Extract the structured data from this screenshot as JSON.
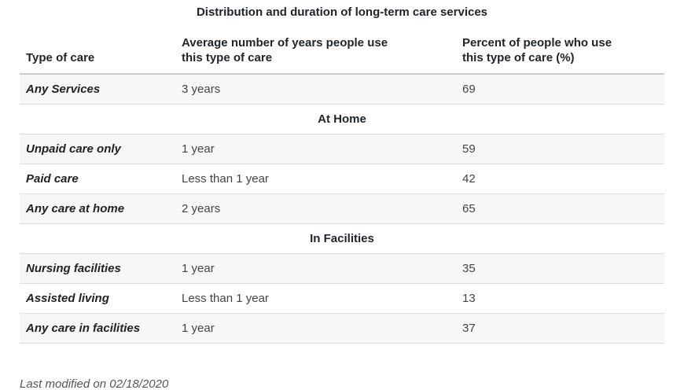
{
  "page": {
    "title": "Distribution and duration of long-term care services",
    "last_modified": "Last modified on 02/18/2020"
  },
  "table": {
    "columns": [
      {
        "lines": [
          "Type of care"
        ]
      },
      {
        "lines": [
          "Average number of years people use",
          "this type of care"
        ]
      },
      {
        "lines": [
          "Percent of people who use",
          "this type of care (%)"
        ]
      }
    ],
    "rows": [
      {
        "kind": "data",
        "label": "Any Services",
        "years": "3 years",
        "percent": "69"
      },
      {
        "kind": "section",
        "label": "At Home"
      },
      {
        "kind": "data",
        "label": "Unpaid care only",
        "years": "1 year",
        "percent": "59"
      },
      {
        "kind": "data",
        "label": "Paid care",
        "years": "Less than 1 year",
        "percent": "42"
      },
      {
        "kind": "data",
        "label": "Any care at home",
        "years": "2 years",
        "percent": "65"
      },
      {
        "kind": "section",
        "label": "In Facilities"
      },
      {
        "kind": "data",
        "label": "Nursing facilities",
        "years": "1 year",
        "percent": "35"
      },
      {
        "kind": "data",
        "label": "Assisted living",
        "years": "Less than 1 year",
        "percent": "13"
      },
      {
        "kind": "data",
        "label": "Any care in facilities",
        "years": "1 year",
        "percent": "37"
      }
    ]
  },
  "colors": {
    "stripe": "#f7f7f7",
    "row_border": "#dddddd",
    "header_border": "#cccccc",
    "heading_text": "#212529",
    "body_text": "#444444",
    "footer_text": "#555555"
  }
}
